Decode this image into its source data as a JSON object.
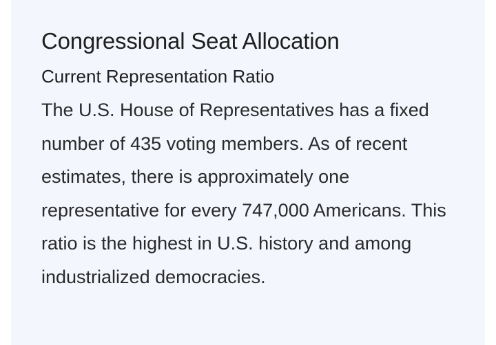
{
  "article": {
    "title": "Congressional Seat Allocation",
    "subtitle": "Current Representation Ratio",
    "paragraph": "The U.S. House of Representatives has a fixed number of 435 voting members. As of recent estimates, there is approximately one representative for every 747,000 Americans. This ratio is the highest in U.S. history and among industrialized democracies."
  },
  "colors": {
    "card_background": "#f3f6fd",
    "heading_text": "#1f1f1f",
    "body_text": "#2a2a2a"
  }
}
